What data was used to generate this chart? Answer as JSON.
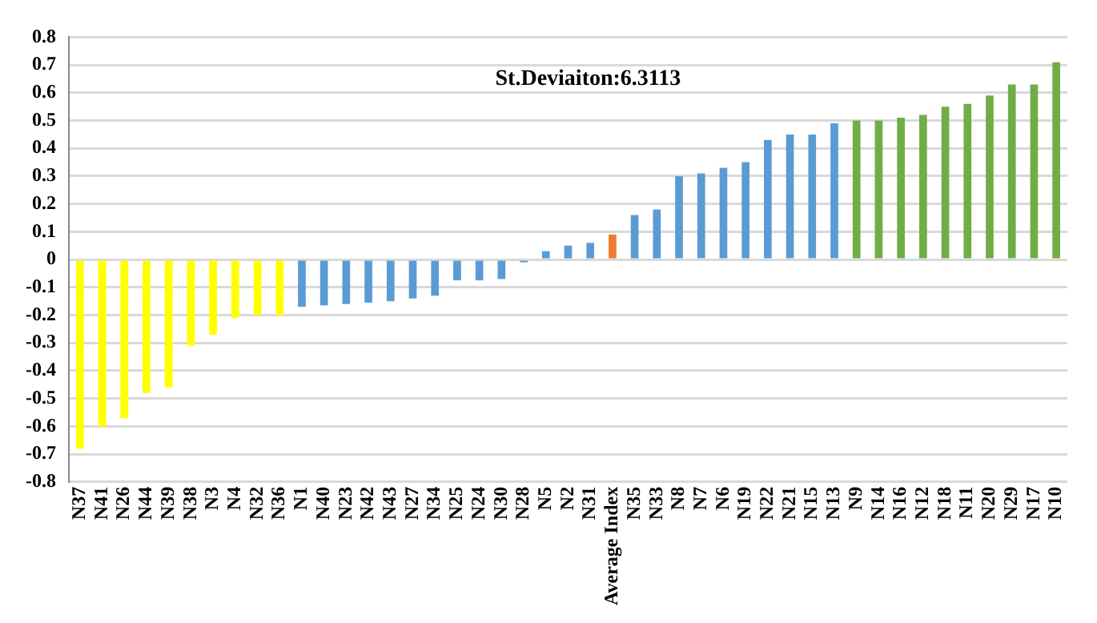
{
  "chart_data": {
    "type": "bar",
    "categories": [
      "N37",
      "N41",
      "N26",
      "N44",
      "N39",
      "N38",
      "N3",
      "N4",
      "N32",
      "N36",
      "N1",
      "N40",
      "N23",
      "N42",
      "N43",
      "N27",
      "N34",
      "N25",
      "N24",
      "N30",
      "N28",
      "N5",
      "N2",
      "N31",
      "Average Index",
      "N35",
      "N33",
      "N8",
      "N7",
      "N6",
      "N19",
      "N22",
      "N21",
      "N15",
      "N13",
      "N9",
      "N14",
      "N16",
      "N12",
      "N18",
      "N11",
      "N20",
      "N29",
      "N17",
      "N10"
    ],
    "values": [
      -0.68,
      -0.6,
      -0.57,
      -0.48,
      -0.46,
      -0.31,
      -0.27,
      -0.21,
      -0.2,
      -0.2,
      -0.17,
      -0.165,
      -0.16,
      -0.155,
      -0.15,
      -0.14,
      -0.13,
      -0.075,
      -0.075,
      -0.07,
      -0.01,
      0.03,
      0.05,
      0.06,
      0.09,
      0.16,
      0.18,
      0.3,
      0.31,
      0.33,
      0.35,
      0.43,
      0.45,
      0.45,
      0.49,
      0.5,
      0.5,
      0.51,
      0.52,
      0.55,
      0.56,
      0.59,
      0.63,
      0.63,
      0.71
    ],
    "colors": [
      "#ffff00",
      "#ffff00",
      "#ffff00",
      "#ffff00",
      "#ffff00",
      "#ffff00",
      "#ffff00",
      "#ffff00",
      "#ffff00",
      "#ffff00",
      "#5b9bd5",
      "#5b9bd5",
      "#5b9bd5",
      "#5b9bd5",
      "#5b9bd5",
      "#5b9bd5",
      "#5b9bd5",
      "#5b9bd5",
      "#5b9bd5",
      "#5b9bd5",
      "#5b9bd5",
      "#5b9bd5",
      "#5b9bd5",
      "#5b9bd5",
      "#ed7d31",
      "#5b9bd5",
      "#5b9bd5",
      "#5b9bd5",
      "#5b9bd5",
      "#5b9bd5",
      "#5b9bd5",
      "#5b9bd5",
      "#5b9bd5",
      "#5b9bd5",
      "#5b9bd5",
      "#70ad47",
      "#70ad47",
      "#70ad47",
      "#70ad47",
      "#70ad47",
      "#70ad47",
      "#70ad47",
      "#70ad47",
      "#70ad47",
      "#70ad47"
    ],
    "ylim": [
      -0.8,
      0.8
    ],
    "yticks": [
      -0.8,
      -0.7,
      -0.6,
      -0.5,
      -0.4,
      -0.3,
      -0.2,
      -0.1,
      0,
      0.1,
      0.2,
      0.3,
      0.4,
      0.5,
      0.6,
      0.7,
      0.8
    ],
    "grid": "y",
    "legend": false,
    "annotations": [
      "St.Deviaiton:6.3113"
    ]
  }
}
